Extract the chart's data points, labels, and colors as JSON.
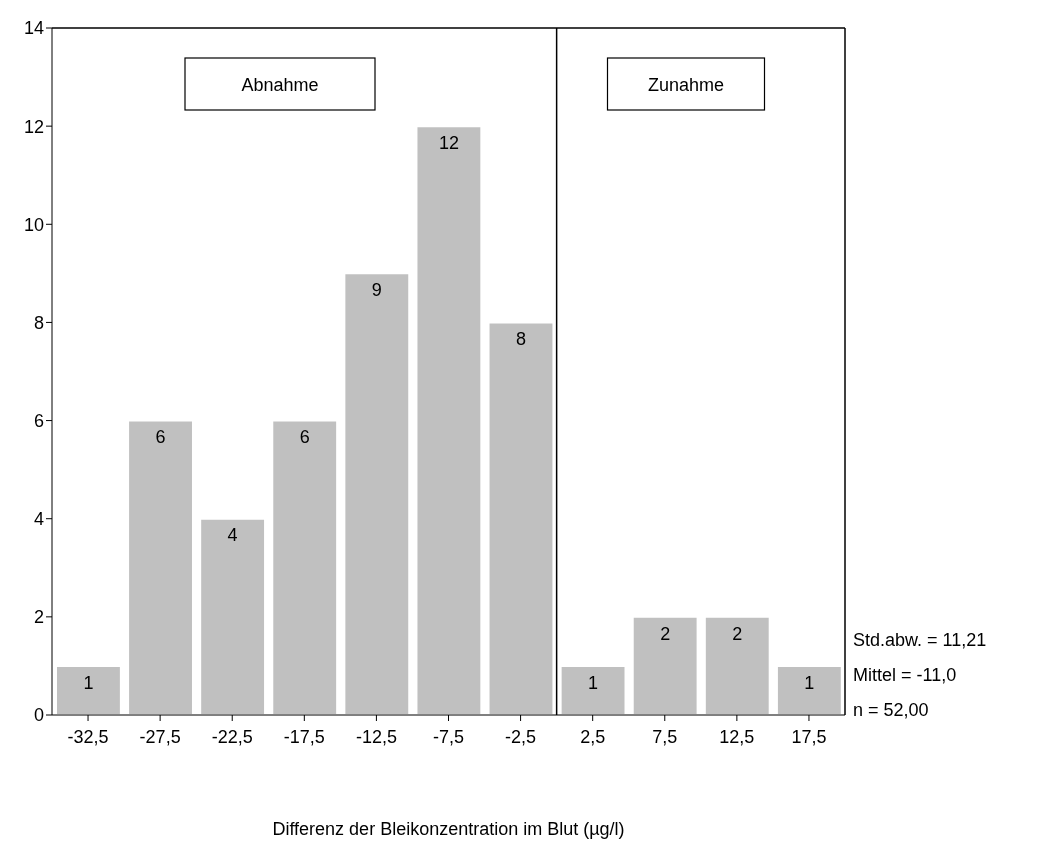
{
  "chart_data": {
    "type": "histogram",
    "xlabel": "Differenz der Bleikonzentration im Blut (µg/l)",
    "bins": [
      -35,
      -30,
      -25,
      -20,
      -15,
      -10,
      -5,
      0,
      5,
      10,
      15,
      20
    ],
    "values": [
      1,
      6,
      4,
      6,
      9,
      12,
      8,
      1,
      2,
      2,
      1
    ],
    "color": "#c0c0c0",
    "data_labels": true,
    "grid": false,
    "xlim": [
      -35,
      20
    ],
    "xticks": [
      {
        "value": -32.5,
        "label": "-32,5"
      },
      {
        "value": -27.5,
        "label": "-27,5"
      },
      {
        "value": -22.5,
        "label": "-22,5"
      },
      {
        "value": -17.5,
        "label": "-17,5"
      },
      {
        "value": -12.5,
        "label": "-12,5"
      },
      {
        "value": -7.5,
        "label": "-7,5"
      },
      {
        "value": -2.5,
        "label": "-2,5"
      },
      {
        "value": 2.5,
        "label": "2,5"
      },
      {
        "value": 7.5,
        "label": "7,5"
      },
      {
        "value": 12.5,
        "label": "12,5"
      },
      {
        "value": 17.5,
        "label": "17,5"
      }
    ],
    "ylim": [
      0,
      14
    ],
    "yticks": [
      0,
      2,
      4,
      6,
      8,
      10,
      12,
      14
    ],
    "ref_lines": [
      {
        "axis": "x",
        "value": 0,
        "label": null,
        "color": "#000000"
      }
    ],
    "annotations": [
      "Abnahme",
      "Zunahme",
      "Std.abw. = 11,21",
      "Mittel = -11,0",
      "n = 52,00"
    ]
  }
}
